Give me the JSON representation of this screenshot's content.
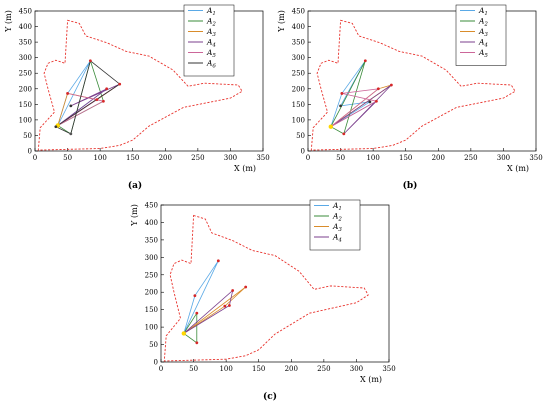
{
  "panels": [
    {
      "label": "(a)"
    },
    {
      "label": "(b)"
    },
    {
      "label": "(c)"
    }
  ],
  "chart_data": [
    {
      "type": "line",
      "panel": "(a)",
      "xlabel": "X (m)",
      "ylabel": "Y (m)",
      "xlim": [
        0,
        350
      ],
      "ylim": [
        0,
        450
      ],
      "xticks": [
        0,
        50,
        100,
        150,
        200,
        250,
        300,
        350
      ],
      "yticks": [
        0,
        50,
        100,
        150,
        200,
        250,
        300,
        350,
        400,
        450
      ],
      "boundary_color": "#e8322c",
      "boundary": [
        [
          50,
          420
        ],
        [
          68,
          410
        ],
        [
          78,
          370
        ],
        [
          110,
          348
        ],
        [
          140,
          320
        ],
        [
          175,
          305
        ],
        [
          212,
          260
        ],
        [
          235,
          208
        ],
        [
          260,
          218
        ],
        [
          312,
          212
        ],
        [
          318,
          192
        ],
        [
          300,
          170
        ],
        [
          228,
          140
        ],
        [
          175,
          80
        ],
        [
          150,
          35
        ],
        [
          130,
          18
        ],
        [
          100,
          8
        ],
        [
          5,
          3
        ],
        [
          8,
          75
        ],
        [
          30,
          125
        ],
        [
          20,
          200
        ],
        [
          14,
          250
        ],
        [
          20,
          282
        ],
        [
          32,
          292
        ],
        [
          46,
          282
        ],
        [
          50,
          420
        ]
      ],
      "points": [
        {
          "x": 35,
          "y": 82,
          "color": "#ffd700"
        },
        {
          "x": 50,
          "y": 185,
          "color": "#d62728"
        },
        {
          "x": 85,
          "y": 290,
          "color": "#d62728"
        },
        {
          "x": 55,
          "y": 55,
          "color": "#555555"
        },
        {
          "x": 130,
          "y": 215,
          "color": "#d62728"
        },
        {
          "x": 110,
          "y": 200,
          "color": "#d62728"
        },
        {
          "x": 105,
          "y": 160,
          "color": "#d62728"
        },
        {
          "x": 95,
          "y": 165,
          "color": "#d62728"
        },
        {
          "x": 55,
          "y": 145,
          "color": "#333333"
        },
        {
          "x": 32,
          "y": 78,
          "color": "#333333"
        }
      ],
      "series": [
        {
          "name": "A1",
          "color": "#5aa9e6",
          "x": [
            35,
            50,
            85,
            35,
            110,
            35
          ],
          "y": [
            82,
            185,
            290,
            82,
            200,
            82
          ]
        },
        {
          "name": "A2",
          "color": "#3a8b3a",
          "x": [
            35,
            55,
            85,
            105,
            35
          ],
          "y": [
            82,
            55,
            290,
            160,
            82
          ]
        },
        {
          "name": "A3",
          "color": "#d98c2b",
          "x": [
            35,
            130,
            95,
            50,
            35
          ],
          "y": [
            82,
            215,
            165,
            185,
            82
          ]
        },
        {
          "name": "A4",
          "color": "#7b3f8c",
          "x": [
            35,
            110,
            55,
            130,
            35
          ],
          "y": [
            82,
            200,
            145,
            215,
            82
          ]
        },
        {
          "name": "A5",
          "color": "#cc6699",
          "x": [
            35,
            105,
            50,
            95,
            35
          ],
          "y": [
            82,
            160,
            185,
            165,
            82
          ]
        },
        {
          "name": "A6",
          "color": "#333333",
          "x": [
            32,
            130,
            85,
            55,
            32
          ],
          "y": [
            78,
            215,
            290,
            55,
            78
          ]
        }
      ]
    },
    {
      "type": "line",
      "panel": "(b)",
      "xlabel": "X (m)",
      "ylabel": "Y (m)",
      "xlim": [
        0,
        350
      ],
      "ylim": [
        0,
        450
      ],
      "xticks": [
        0,
        50,
        100,
        150,
        200,
        250,
        300,
        350
      ],
      "yticks": [
        0,
        50,
        100,
        150,
        200,
        250,
        300,
        350,
        400,
        450
      ],
      "boundary_color": "#e8322c",
      "boundary": [
        [
          50,
          420
        ],
        [
          68,
          410
        ],
        [
          78,
          370
        ],
        [
          110,
          348
        ],
        [
          140,
          320
        ],
        [
          175,
          305
        ],
        [
          212,
          260
        ],
        [
          235,
          208
        ],
        [
          260,
          218
        ],
        [
          312,
          212
        ],
        [
          318,
          192
        ],
        [
          300,
          170
        ],
        [
          228,
          140
        ],
        [
          175,
          80
        ],
        [
          150,
          35
        ],
        [
          130,
          18
        ],
        [
          100,
          8
        ],
        [
          5,
          3
        ],
        [
          8,
          75
        ],
        [
          30,
          125
        ],
        [
          20,
          200
        ],
        [
          14,
          250
        ],
        [
          20,
          282
        ],
        [
          32,
          292
        ],
        [
          46,
          282
        ],
        [
          50,
          420
        ]
      ],
      "points": [
        {
          "x": 35,
          "y": 78,
          "color": "#ffd700"
        },
        {
          "x": 52,
          "y": 185,
          "color": "#d62728"
        },
        {
          "x": 88,
          "y": 290,
          "color": "#d62728"
        },
        {
          "x": 55,
          "y": 55,
          "color": "#d62728"
        },
        {
          "x": 128,
          "y": 212,
          "color": "#d62728"
        },
        {
          "x": 108,
          "y": 200,
          "color": "#d62728"
        },
        {
          "x": 105,
          "y": 160,
          "color": "#d62728"
        },
        {
          "x": 95,
          "y": 158,
          "color": "#333333"
        },
        {
          "x": 50,
          "y": 145,
          "color": "#333333"
        }
      ],
      "series": [
        {
          "name": "A1",
          "color": "#5aa9e6",
          "x": [
            35,
            52,
            88,
            50,
            95,
            35
          ],
          "y": [
            78,
            185,
            290,
            145,
            158,
            78
          ]
        },
        {
          "name": "A2",
          "color": "#3a8b3a",
          "x": [
            35,
            55,
            88,
            35
          ],
          "y": [
            78,
            55,
            290,
            78
          ]
        },
        {
          "name": "A3",
          "color": "#d98c2b",
          "x": [
            35,
            128,
            108,
            35
          ],
          "y": [
            78,
            212,
            200,
            78
          ]
        },
        {
          "name": "A4",
          "color": "#7b3f8c",
          "x": [
            35,
            105,
            55,
            128,
            35
          ],
          "y": [
            78,
            160,
            55,
            212,
            78
          ]
        },
        {
          "name": "A5",
          "color": "#cc6699",
          "x": [
            35,
            108,
            52,
            105,
            35
          ],
          "y": [
            78,
            200,
            185,
            160,
            78
          ]
        }
      ]
    },
    {
      "type": "line",
      "panel": "(c)",
      "xlabel": "X (m)",
      "ylabel": "Y (m)",
      "xlim": [
        0,
        350
      ],
      "ylim": [
        0,
        450
      ],
      "xticks": [
        0,
        50,
        100,
        150,
        200,
        250,
        300,
        350
      ],
      "yticks": [
        0,
        50,
        100,
        150,
        200,
        250,
        300,
        350,
        400,
        450
      ],
      "boundary_color": "#e8322c",
      "boundary": [
        [
          50,
          420
        ],
        [
          68,
          410
        ],
        [
          78,
          370
        ],
        [
          110,
          348
        ],
        [
          140,
          320
        ],
        [
          175,
          305
        ],
        [
          212,
          260
        ],
        [
          235,
          208
        ],
        [
          260,
          218
        ],
        [
          312,
          212
        ],
        [
          318,
          192
        ],
        [
          300,
          170
        ],
        [
          228,
          140
        ],
        [
          175,
          80
        ],
        [
          150,
          35
        ],
        [
          130,
          18
        ],
        [
          100,
          8
        ],
        [
          5,
          3
        ],
        [
          8,
          75
        ],
        [
          30,
          125
        ],
        [
          20,
          200
        ],
        [
          14,
          250
        ],
        [
          20,
          282
        ],
        [
          32,
          292
        ],
        [
          46,
          282
        ],
        [
          50,
          420
        ]
      ],
      "points": [
        {
          "x": 35,
          "y": 82,
          "color": "#ffd700"
        },
        {
          "x": 52,
          "y": 190,
          "color": "#d62728"
        },
        {
          "x": 88,
          "y": 290,
          "color": "#d62728"
        },
        {
          "x": 55,
          "y": 55,
          "color": "#d62728"
        },
        {
          "x": 130,
          "y": 215,
          "color": "#d62728"
        },
        {
          "x": 110,
          "y": 205,
          "color": "#d62728"
        },
        {
          "x": 105,
          "y": 162,
          "color": "#d62728"
        },
        {
          "x": 98,
          "y": 160,
          "color": "#d62728"
        },
        {
          "x": 55,
          "y": 140,
          "color": "#d62728"
        }
      ],
      "series": [
        {
          "name": "A1",
          "color": "#5aa9e6",
          "x": [
            35,
            52,
            88,
            35
          ],
          "y": [
            82,
            190,
            290,
            82
          ]
        },
        {
          "name": "A2",
          "color": "#3a8b3a",
          "x": [
            35,
            55,
            55,
            35
          ],
          "y": [
            82,
            55,
            140,
            82
          ]
        },
        {
          "name": "A3",
          "color": "#d98c2b",
          "x": [
            35,
            130,
            98,
            35
          ],
          "y": [
            82,
            215,
            160,
            82
          ]
        },
        {
          "name": "A4",
          "color": "#7b3f8c",
          "x": [
            35,
            110,
            105,
            35
          ],
          "y": [
            82,
            205,
            162,
            82
          ]
        }
      ]
    }
  ]
}
